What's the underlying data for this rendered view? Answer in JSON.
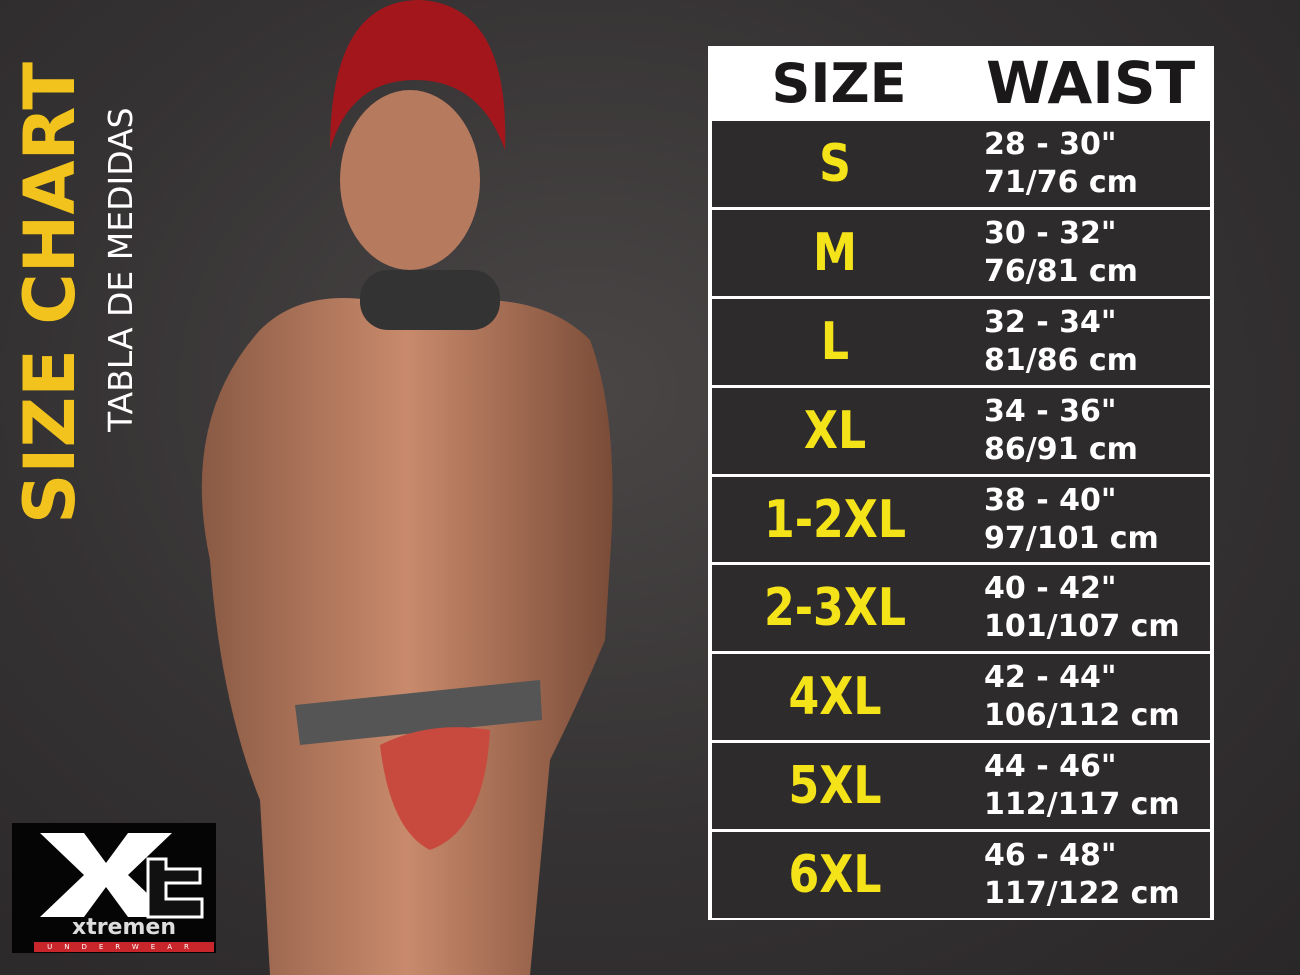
{
  "title": {
    "main": "SIZE CHART",
    "subtitle": "TABLA DE MEDIDAS"
  },
  "table": {
    "headers": {
      "size": "SIZE",
      "waist": "WAIST"
    },
    "rows": [
      {
        "size": "S",
        "inches": "28 - 30\"",
        "cm": "71/76 cm"
      },
      {
        "size": "M",
        "inches": "30 - 32\"",
        "cm": "76/81 cm"
      },
      {
        "size": "L",
        "inches": "32 - 34\"",
        "cm": "81/86 cm"
      },
      {
        "size": "XL",
        "inches": "34 - 36\"",
        "cm": "86/91 cm"
      },
      {
        "size": "1-2XL",
        "inches": "38 - 40\"",
        "cm": "97/101 cm"
      },
      {
        "size": "2-3XL",
        "inches": "40 - 42\"",
        "cm": "101/107 cm"
      },
      {
        "size": "4XL",
        "inches": "42 - 44\"",
        "cm": "106/112 cm"
      },
      {
        "size": "5XL",
        "inches": "44 - 46\"",
        "cm": "112/117 cm"
      },
      {
        "size": "6XL",
        "inches": "46 - 48\"",
        "cm": "117/122 cm"
      }
    ]
  },
  "logo": {
    "mark": "Xt",
    "word": "xtremen",
    "tagline": "UNDERWEAR"
  },
  "colors": {
    "accent_yellow": "#f5e31a",
    "title_yellow": "#f2c31c",
    "row_bg": "#2e2b2c",
    "logo_red": "#c8262b"
  }
}
